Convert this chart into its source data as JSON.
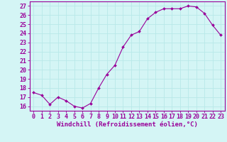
{
  "x": [
    0,
    1,
    2,
    3,
    4,
    5,
    6,
    7,
    8,
    9,
    10,
    11,
    12,
    13,
    14,
    15,
    16,
    17,
    18,
    19,
    20,
    21,
    22,
    23
  ],
  "y": [
    17.5,
    17.2,
    16.2,
    17.0,
    16.6,
    16.0,
    15.8,
    16.3,
    18.0,
    19.5,
    20.5,
    22.5,
    23.8,
    24.2,
    25.6,
    26.3,
    26.7,
    26.7,
    26.7,
    27.0,
    26.9,
    26.2,
    24.9,
    23.8
  ],
  "line_color": "#990099",
  "marker_color": "#990099",
  "bg_color": "#d4f5f5",
  "grid_color": "#b8e8e8",
  "xlabel": "Windchill (Refroidissement éolien,°C)",
  "ylabel_ticks": [
    16,
    17,
    18,
    19,
    20,
    21,
    22,
    23,
    24,
    25,
    26,
    27
  ],
  "xlim": [
    -0.5,
    23.5
  ],
  "ylim": [
    15.5,
    27.5
  ],
  "xlabel_fontsize": 6.5,
  "tick_fontsize": 6,
  "xlabel_color": "#990099",
  "tick_color": "#990099",
  "spine_color": "#990099"
}
